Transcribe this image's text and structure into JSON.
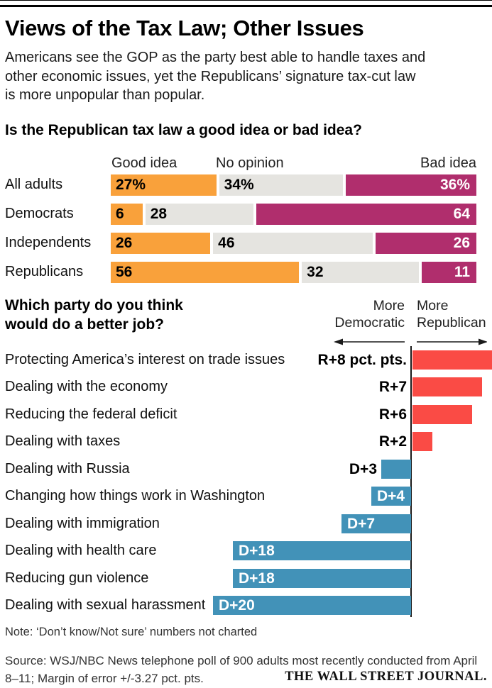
{
  "header": {
    "title": "Views of the Tax Law; Other Issues",
    "subtitle_lines": [
      "Americans see the GOP as the party best able to handle taxes and",
      "other economic issues, yet the Republicans’ signature tax-cut law",
      "is more unpopular than popular."
    ]
  },
  "colors": {
    "good_idea_orange": "#F9A13B",
    "no_opinion_gray": "#E5E4E0",
    "bad_idea_magenta": "#B02E6D",
    "republican_red": "#FA4B45",
    "democratic_blue": "#4292B8",
    "axis_black": "#1a1a1a"
  },
  "chart_data": [
    {
      "type": "bar",
      "variant": "horizontal-stacked-100pct",
      "title": "Is the Republican tax law a good idea or bad idea?",
      "legend": [
        "Good idea",
        "No opinion",
        "Bad idea"
      ],
      "legend_position": "top",
      "categories": [
        "All adults",
        "Democrats",
        "Independents",
        "Republicans"
      ],
      "series": [
        {
          "name": "Good idea",
          "color": "#F9A13B",
          "values": [
            27,
            6,
            26,
            56
          ],
          "labels": [
            "27%",
            "6",
            "26",
            "56"
          ]
        },
        {
          "name": "No opinion",
          "color": "#E5E4E0",
          "values": [
            34,
            28,
            46,
            32
          ],
          "labels": [
            "34%",
            "28",
            "46",
            "32"
          ]
        },
        {
          "name": "Bad idea",
          "color": "#B02E6D",
          "values": [
            36,
            64,
            26,
            11
          ],
          "labels": [
            "36%",
            "64",
            "26",
            "11"
          ]
        }
      ]
    },
    {
      "type": "bar",
      "variant": "horizontal-diverging",
      "title_lines": [
        "Which party do you think",
        "would do a better job?"
      ],
      "axis_headers": {
        "left_lines": [
          "More",
          "Democratic"
        ],
        "right_lines": [
          "More",
          "Republican"
        ]
      },
      "unit": "pct. pts.",
      "rows": [
        {
          "label": "Protecting America’s interest on trade issues",
          "party": "R",
          "value": 8,
          "value_label": "R+8 pct. pts.",
          "label_inside": false
        },
        {
          "label": "Dealing with the economy",
          "party": "R",
          "value": 7,
          "value_label": "R+7",
          "label_inside": false
        },
        {
          "label": "Reducing the federal deficit",
          "party": "R",
          "value": 6,
          "value_label": "R+6",
          "label_inside": false
        },
        {
          "label": "Dealing with taxes",
          "party": "R",
          "value": 2,
          "value_label": "R+2",
          "label_inside": false
        },
        {
          "label": "Dealing with Russia",
          "party": "D",
          "value": 3,
          "value_label": "D+3",
          "label_inside": false
        },
        {
          "label": "Changing how things work in Washington",
          "party": "D",
          "value": 4,
          "value_label": "D+4",
          "label_inside": true
        },
        {
          "label": "Dealing with immigration",
          "party": "D",
          "value": 7,
          "value_label": "D+7",
          "label_inside": true
        },
        {
          "label": "Dealing with health care",
          "party": "D",
          "value": 18,
          "value_label": "D+18",
          "label_inside": true
        },
        {
          "label": "Reducing gun violence",
          "party": "D",
          "value": 18,
          "value_label": "D+18",
          "label_inside": true
        },
        {
          "label": "Dealing with sexual harassment",
          "party": "D",
          "value": 20,
          "value_label": "D+20",
          "label_inside": true
        }
      ]
    }
  ],
  "footer": {
    "note": "Note: ‘Don’t know/Not sure’ numbers not charted",
    "source_lines": [
      "Source: WSJ/NBC News telephone poll of 900 adults most recently conducted from April",
      "8–11; Margin of error +/-3.27 pct. pts."
    ],
    "logo": "THE WALL STREET JOURNAL."
  }
}
